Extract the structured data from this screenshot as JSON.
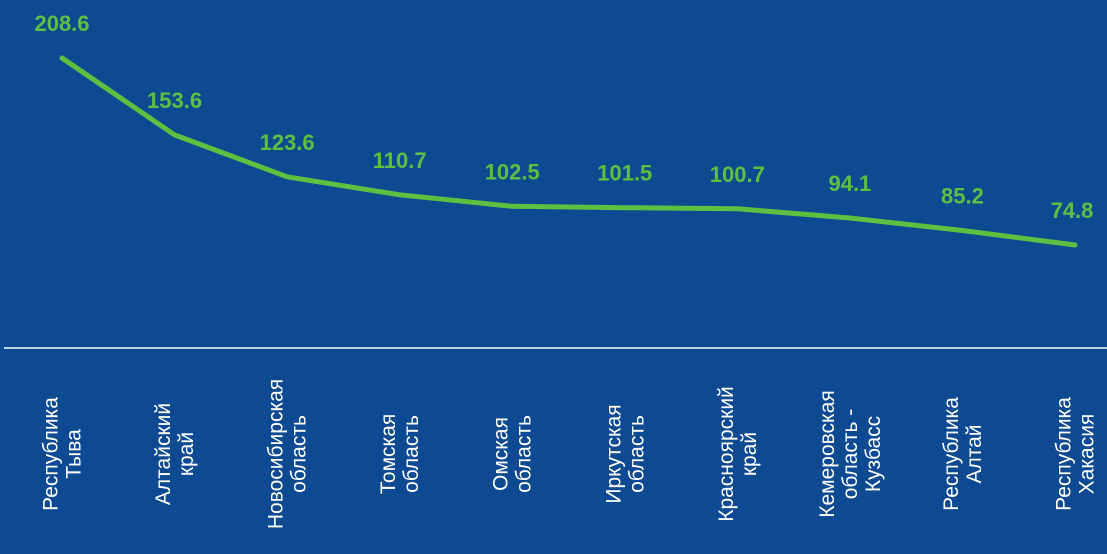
{
  "chart_data": {
    "type": "line",
    "categories": [
      "Республика Тыва",
      "Алтайский край",
      "Новосибирская область",
      "Томская область",
      "Омская область",
      "Иркутская область",
      "Красноярский край",
      "Кемеровская область - Кузбасс",
      "Республика Алтай",
      "Республика Хакасия"
    ],
    "category_lines": [
      [
        "Республика",
        "Тыва"
      ],
      [
        "Алтайский",
        "край"
      ],
      [
        "Новосибирская",
        "область"
      ],
      [
        "Томская",
        "область"
      ],
      [
        "Омская",
        "область"
      ],
      [
        "Иркутская",
        "область"
      ],
      [
        "Красноярский",
        "край"
      ],
      [
        "Кемеровская",
        "область -",
        "Кузбасс"
      ],
      [
        "Республика",
        "Алтай"
      ],
      [
        "Республика",
        "Хакасия"
      ]
    ],
    "values": [
      208.6,
      153.6,
      123.6,
      110.7,
      102.5,
      101.5,
      100.7,
      94.1,
      85.2,
      74.8
    ],
    "data_labels": [
      "208.6",
      "153.6",
      "123.6",
      "110.7",
      "102.5",
      "101.5",
      "100.7",
      "94.1",
      "85.2",
      "74.8"
    ],
    "title": "",
    "xlabel": "",
    "ylabel": "",
    "grid": false,
    "legend": false,
    "colors": {
      "background": "#0e4a91",
      "line": "#5cc040",
      "labels": "#5cc040",
      "category_text": "#ffffff",
      "axis": "#ffffff"
    }
  }
}
